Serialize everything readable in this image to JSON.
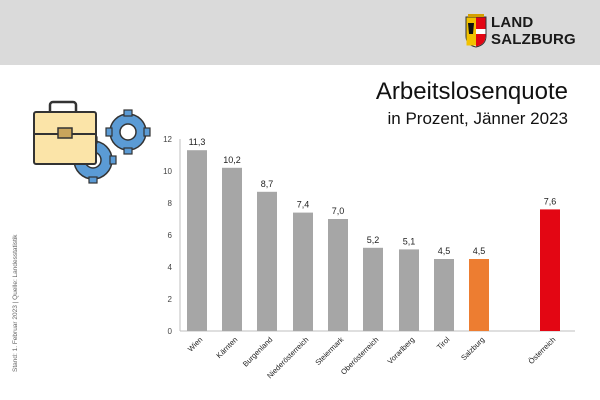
{
  "brand": {
    "line1": "LAND",
    "line2": "SALZBURG"
  },
  "title": "Arbeitslosenquote",
  "subtitle": "in Prozent, Jänner 2023",
  "side_note": "Stand: 1. Februar 2023 | Quelle: Landesstatistik",
  "colors": {
    "bar_default": "#a6a6a6",
    "bar_salzburg": "#ed7d31",
    "bar_austria": "#e30613",
    "header": "#dadada"
  },
  "chart_data": {
    "type": "bar",
    "title": "Arbeitslosenquote",
    "subtitle": "in Prozent, Jänner 2023",
    "xlabel": "",
    "ylabel": "",
    "ylim": [
      0,
      12
    ],
    "yticks": [
      0,
      2,
      4,
      6,
      8,
      10,
      12
    ],
    "grid": false,
    "categories": [
      "Wien",
      "Kärnten",
      "Burgenland",
      "Niederösterreich",
      "Steiermark",
      "Oberösterreich",
      "Vorarlberg",
      "Tirol",
      "Salzburg",
      "Österreich"
    ],
    "values": [
      11.3,
      10.2,
      8.7,
      7.4,
      7.0,
      5.2,
      5.1,
      4.5,
      4.5,
      7.6
    ],
    "value_labels": [
      "11,3",
      "10,2",
      "8,7",
      "7,4",
      "7,0",
      "5,2",
      "5,1",
      "4,5",
      "4,5",
      "7,6"
    ],
    "highlight": {
      "Salzburg": "bar_salzburg",
      "Österreich": "bar_austria"
    }
  }
}
